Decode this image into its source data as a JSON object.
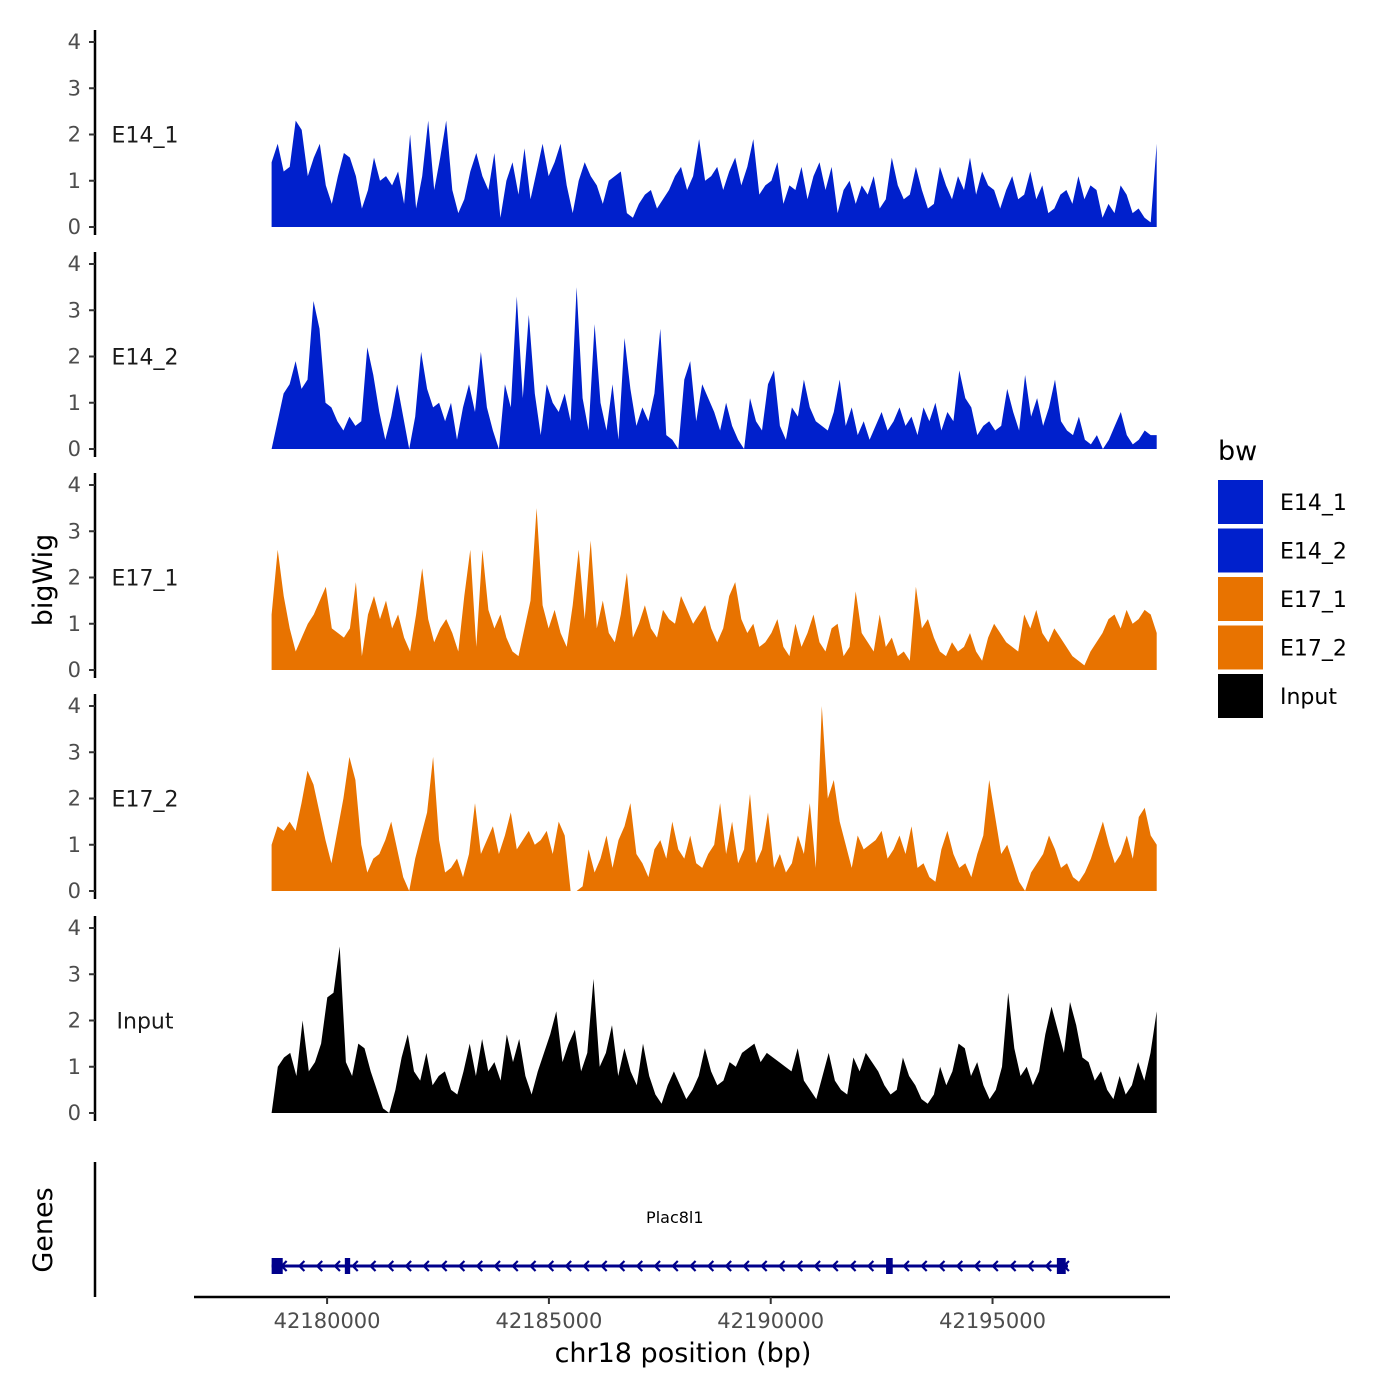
{
  "chart_data": {
    "type": "area",
    "ylabel": "bigWig",
    "genes_label": "Genes",
    "xlabel": "chr18 position (bp)",
    "xlim": [
      42177000,
      42199000
    ],
    "data_x_range": [
      42178750,
      42198700
    ],
    "x_ticks": [
      42180000,
      42185000,
      42190000,
      42195000
    ],
    "x_tick_labels": [
      "42180000",
      "42185000",
      "42190000",
      "42195000"
    ],
    "ylim": [
      0,
      4
    ],
    "y_ticks": [
      0,
      1,
      2,
      3,
      4
    ],
    "y_tick_labels": [
      "0",
      "1",
      "2",
      "3",
      "4"
    ],
    "legend": {
      "title": "bw",
      "entries": [
        "E14_1",
        "E14_2",
        "E17_1",
        "E17_2",
        "Input"
      ]
    },
    "colors": {
      "E14_1": "#0020CC",
      "E14_2": "#0020CC",
      "E17_1": "#E87300",
      "E17_2": "#E87300",
      "Input": "#000000",
      "gene": "#00008B"
    },
    "series": [
      {
        "name": "E14_1",
        "values": [
          1.4,
          1.8,
          1.2,
          1.3,
          2.3,
          2.1,
          1.1,
          1.5,
          1.8,
          0.9,
          0.5,
          1.1,
          1.6,
          1.5,
          1.1,
          0.4,
          0.8,
          1.5,
          1.0,
          1.1,
          0.9,
          1.2,
          0.5,
          2.0,
          0.4,
          1.1,
          2.3,
          0.8,
          1.5,
          2.3,
          0.8,
          0.3,
          0.6,
          1.2,
          1.6,
          1.1,
          0.8,
          1.6,
          0.2,
          1.0,
          1.4,
          0.7,
          1.7,
          0.6,
          1.2,
          1.8,
          1.1,
          1.4,
          1.8,
          0.9,
          0.3,
          1.0,
          1.4,
          1.1,
          0.9,
          0.5,
          1.0,
          1.1,
          1.2,
          0.3,
          0.2,
          0.5,
          0.7,
          0.8,
          0.4,
          0.6,
          0.8,
          1.1,
          1.3,
          0.8,
          1.1,
          1.9,
          1.0,
          1.1,
          1.3,
          0.8,
          1.2,
          1.5,
          0.9,
          1.3,
          1.9,
          0.7,
          0.9,
          1.0,
          1.4,
          0.5,
          0.9,
          0.8,
          1.3,
          0.6,
          1.1,
          1.4,
          0.8,
          1.3,
          0.3,
          0.8,
          1.0,
          0.5,
          0.9,
          0.7,
          1.1,
          0.4,
          0.6,
          1.5,
          0.9,
          0.6,
          0.7,
          1.3,
          0.8,
          0.4,
          0.5,
          1.3,
          0.9,
          0.6,
          1.1,
          0.8,
          1.5,
          0.7,
          1.2,
          0.9,
          0.8,
          0.4,
          0.8,
          1.1,
          0.6,
          0.7,
          1.2,
          0.6,
          0.9,
          0.3,
          0.4,
          0.7,
          0.8,
          0.5,
          1.1,
          0.6,
          0.9,
          0.8,
          0.2,
          0.5,
          0.3,
          0.9,
          0.7,
          0.3,
          0.4,
          0.2,
          0.1,
          1.8
        ]
      },
      {
        "name": "E14_2",
        "values": [
          0.0,
          0.6,
          1.2,
          1.4,
          1.9,
          1.3,
          1.5,
          3.2,
          2.6,
          1.0,
          0.9,
          0.6,
          0.4,
          0.7,
          0.5,
          0.6,
          2.2,
          1.6,
          0.8,
          0.2,
          0.7,
          1.4,
          0.7,
          0.0,
          0.7,
          2.1,
          1.3,
          0.9,
          1.0,
          0.6,
          1.0,
          0.2,
          0.9,
          1.4,
          0.8,
          2.1,
          0.9,
          0.4,
          0.0,
          1.4,
          0.9,
          3.3,
          1.1,
          2.9,
          1.2,
          0.3,
          1.4,
          1.0,
          0.8,
          1.2,
          0.6,
          3.5,
          1.1,
          0.4,
          2.7,
          1.0,
          0.4,
          1.4,
          0.2,
          2.4,
          1.3,
          0.5,
          0.9,
          0.6,
          1.2,
          2.6,
          0.3,
          0.2,
          0.0,
          1.5,
          1.9,
          0.6,
          1.4,
          1.1,
          0.8,
          0.4,
          1.0,
          0.5,
          0.2,
          0.0,
          1.1,
          0.6,
          0.4,
          1.4,
          1.7,
          0.5,
          0.2,
          0.9,
          0.7,
          1.5,
          0.9,
          0.6,
          0.5,
          0.4,
          0.8,
          1.5,
          0.5,
          0.9,
          0.3,
          0.6,
          0.2,
          0.5,
          0.8,
          0.4,
          0.6,
          0.9,
          0.5,
          0.7,
          0.3,
          0.9,
          0.6,
          1.0,
          0.4,
          0.8,
          0.6,
          1.7,
          1.1,
          0.9,
          0.3,
          0.5,
          0.6,
          0.4,
          0.5,
          1.3,
          0.8,
          0.4,
          1.6,
          0.7,
          1.1,
          0.5,
          0.9,
          1.5,
          0.6,
          0.4,
          0.3,
          0.7,
          0.2,
          0.1,
          0.3,
          0.0,
          0.2,
          0.5,
          0.8,
          0.3,
          0.1,
          0.2,
          0.4,
          0.3,
          0.3
        ]
      },
      {
        "name": "E17_1",
        "values": [
          1.2,
          2.6,
          1.6,
          0.9,
          0.4,
          0.7,
          1.0,
          1.2,
          1.5,
          1.8,
          0.9,
          0.8,
          0.7,
          0.9,
          1.9,
          0.3,
          1.2,
          1.6,
          1.1,
          1.5,
          0.9,
          1.2,
          0.7,
          0.4,
          1.2,
          2.2,
          1.1,
          0.6,
          0.9,
          1.1,
          0.8,
          0.4,
          1.6,
          2.6,
          0.5,
          2.6,
          1.3,
          0.9,
          1.2,
          0.7,
          0.4,
          0.3,
          0.9,
          1.5,
          3.5,
          1.4,
          0.9,
          1.3,
          0.8,
          0.5,
          1.4,
          2.6,
          1.1,
          2.8,
          0.9,
          1.5,
          0.8,
          0.6,
          1.2,
          2.1,
          0.7,
          1.0,
          1.4,
          0.9,
          0.7,
          1.3,
          1.1,
          1.0,
          1.6,
          1.3,
          1.0,
          1.2,
          1.4,
          0.9,
          0.6,
          0.9,
          1.6,
          1.9,
          1.1,
          0.8,
          1.0,
          0.5,
          0.6,
          0.8,
          1.1,
          0.5,
          0.3,
          1.0,
          0.5,
          0.8,
          1.2,
          0.6,
          0.4,
          0.9,
          1.0,
          0.3,
          0.5,
          1.7,
          0.8,
          0.6,
          0.4,
          1.2,
          0.5,
          0.7,
          0.3,
          0.4,
          0.2,
          1.8,
          0.9,
          1.1,
          0.7,
          0.4,
          0.3,
          0.6,
          0.4,
          0.5,
          0.8,
          0.4,
          0.2,
          0.7,
          1.0,
          0.8,
          0.6,
          0.5,
          0.4,
          1.2,
          0.9,
          1.3,
          0.8,
          0.6,
          0.9,
          0.7,
          0.5,
          0.3,
          0.2,
          0.1,
          0.4,
          0.6,
          0.8,
          1.1,
          1.2,
          0.9,
          1.3,
          1.0,
          1.1,
          1.3,
          1.2,
          0.8
        ]
      },
      {
        "name": "E17_2",
        "values": [
          1.0,
          1.4,
          1.3,
          1.5,
          1.3,
          1.9,
          2.6,
          2.3,
          1.7,
          1.1,
          0.6,
          1.3,
          2.0,
          2.9,
          2.4,
          1.0,
          0.4,
          0.7,
          0.8,
          1.1,
          1.5,
          0.9,
          0.3,
          0.0,
          0.7,
          1.2,
          1.7,
          2.9,
          1.1,
          0.4,
          0.5,
          0.7,
          0.3,
          0.8,
          1.9,
          0.8,
          1.1,
          1.4,
          0.8,
          1.2,
          1.7,
          0.9,
          1.1,
          1.3,
          1.0,
          1.1,
          1.3,
          0.8,
          1.5,
          1.2,
          0.0,
          0.0,
          0.1,
          0.9,
          0.4,
          0.7,
          1.2,
          0.5,
          1.1,
          1.4,
          1.9,
          0.8,
          0.6,
          0.3,
          0.9,
          1.1,
          0.7,
          1.5,
          0.9,
          0.7,
          1.2,
          0.6,
          0.5,
          0.8,
          1.0,
          1.9,
          0.8,
          1.5,
          0.6,
          0.9,
          2.1,
          0.6,
          0.9,
          1.7,
          0.5,
          0.8,
          0.4,
          0.6,
          1.2,
          0.8,
          1.9,
          0.5,
          4.0,
          2.0,
          2.4,
          1.5,
          1.0,
          0.5,
          1.2,
          0.9,
          1.0,
          1.1,
          1.3,
          0.7,
          0.9,
          1.2,
          0.8,
          1.4,
          0.5,
          0.6,
          0.3,
          0.2,
          0.9,
          1.3,
          0.8,
          0.5,
          0.6,
          0.3,
          0.8,
          1.2,
          2.4,
          1.6,
          0.8,
          1.0,
          0.6,
          0.2,
          0.0,
          0.4,
          0.6,
          0.8,
          1.2,
          0.9,
          0.5,
          0.6,
          0.3,
          0.2,
          0.4,
          0.7,
          1.1,
          1.5,
          1.0,
          0.6,
          0.8,
          1.2,
          0.7,
          1.6,
          1.8,
          1.2,
          1.0
        ]
      },
      {
        "name": "Input",
        "values": [
          0.0,
          1.0,
          1.2,
          1.3,
          0.8,
          2.0,
          0.9,
          1.1,
          1.5,
          2.5,
          2.6,
          3.6,
          1.1,
          0.8,
          1.5,
          1.4,
          0.9,
          0.5,
          0.1,
          0.0,
          0.5,
          1.2,
          1.7,
          0.9,
          0.7,
          1.3,
          0.6,
          0.8,
          0.9,
          0.5,
          0.4,
          0.9,
          1.5,
          0.8,
          1.6,
          0.9,
          1.1,
          0.7,
          1.7,
          1.1,
          1.6,
          0.8,
          0.4,
          0.9,
          1.3,
          1.7,
          2.2,
          1.1,
          1.5,
          1.8,
          0.9,
          1.3,
          2.9,
          1.0,
          1.3,
          1.9,
          0.8,
          1.4,
          0.9,
          0.6,
          1.5,
          0.8,
          0.4,
          0.2,
          0.6,
          0.9,
          0.6,
          0.3,
          0.5,
          0.8,
          1.4,
          0.9,
          0.6,
          0.7,
          1.1,
          1.0,
          1.3,
          1.4,
          1.5,
          1.1,
          1.3,
          1.2,
          1.1,
          1.0,
          0.9,
          1.4,
          0.7,
          0.5,
          0.3,
          0.8,
          1.3,
          0.7,
          0.5,
          0.4,
          1.2,
          0.9,
          1.3,
          1.1,
          0.9,
          0.6,
          0.4,
          0.5,
          1.2,
          0.8,
          0.6,
          0.3,
          0.2,
          0.4,
          1.0,
          0.6,
          0.9,
          1.5,
          1.4,
          0.8,
          1.1,
          0.6,
          0.3,
          0.5,
          1.0,
          2.6,
          1.4,
          0.8,
          1.0,
          0.6,
          0.9,
          1.7,
          2.3,
          1.8,
          1.3,
          2.4,
          1.9,
          1.2,
          1.1,
          0.7,
          0.9,
          0.5,
          0.3,
          0.8,
          0.4,
          0.6,
          1.1,
          0.7,
          1.3,
          2.2
        ]
      }
    ],
    "gene": {
      "name": "Plac8l1",
      "start": 42178750,
      "end": 42196700,
      "strand": "-",
      "exons": [
        [
          42178750,
          42179000
        ],
        [
          42180400,
          42180520
        ],
        [
          42192600,
          42192750
        ],
        [
          42196450,
          42196650
        ]
      ]
    }
  }
}
